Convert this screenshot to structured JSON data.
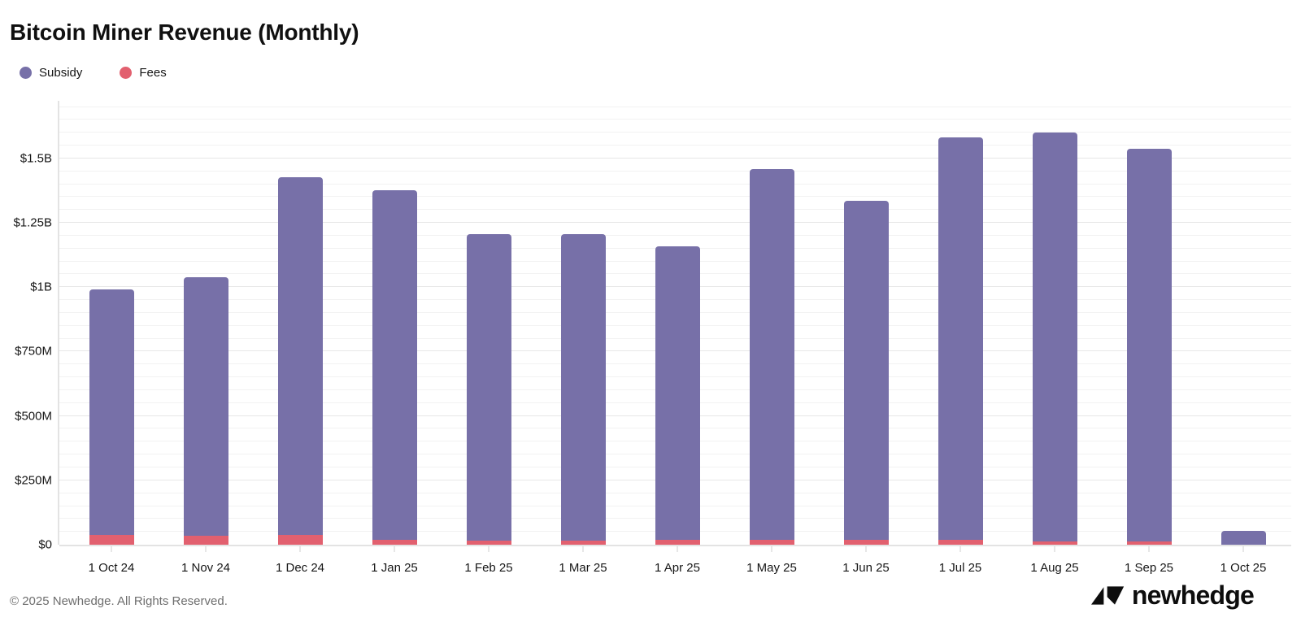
{
  "header": {
    "title": "Bitcoin Miner Revenue (Monthly)"
  },
  "legend": [
    {
      "label": "Subsidy",
      "color": "#7770A8"
    },
    {
      "label": "Fees",
      "color": "#E2606F"
    }
  ],
  "chart_data": {
    "type": "bar",
    "stacked": true,
    "title": "Bitcoin Miner Revenue (Monthly)",
    "units": "USD millions",
    "categories": [
      "1 Oct 24",
      "1 Nov 24",
      "1 Dec 24",
      "1 Jan 25",
      "1 Feb 25",
      "1 Mar 25",
      "1 Apr 25",
      "1 May 25",
      "1 Jun 25",
      "1 Jul 25",
      "1 Aug 25",
      "1 Sep 25",
      "1 Oct 25"
    ],
    "series": [
      {
        "name": "Subsidy",
        "color": "#7770A8",
        "values": [
          955,
          1005,
          1390,
          1355,
          1190,
          1190,
          1140,
          1440,
          1315,
          1565,
          1590,
          1525,
          53
        ]
      },
      {
        "name": "Fees",
        "color": "#E2606F",
        "values": [
          37,
          35,
          38,
          20,
          16,
          16,
          18,
          20,
          20,
          18,
          12,
          13,
          0
        ]
      }
    ],
    "stack_order_bottom_to_top": [
      "Fees",
      "Subsidy"
    ],
    "xlabel": "",
    "ylabel": "",
    "ylim": [
      0,
      1730
    ],
    "ytick_values": [
      0,
      250,
      500,
      750,
      1000,
      1250,
      1500
    ],
    "ytick_labels": [
      "$0",
      "$250M",
      "$500M",
      "$750M",
      "$1B",
      "$1.25B",
      "$1.5B"
    ],
    "grid": {
      "minor_step": 50,
      "major_step": 250,
      "visible": true
    },
    "legend_position": "top-left"
  },
  "footer": {
    "copyright": "© 2025 Newhedge. All Rights Reserved.",
    "brand": "newhedge"
  }
}
